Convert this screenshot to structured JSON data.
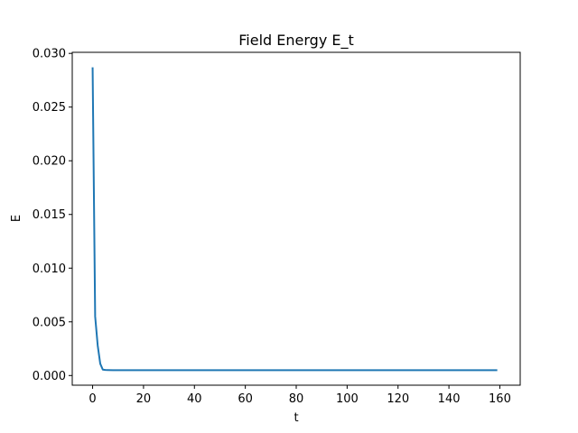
{
  "chart_data": {
    "type": "line",
    "title": "Field Energy E_t",
    "xlabel": "t",
    "ylabel": "E",
    "xlim": [
      -8,
      168
    ],
    "ylim": [
      -0.0009,
      0.0301
    ],
    "xticks": [
      0,
      20,
      40,
      60,
      80,
      100,
      120,
      140,
      160
    ],
    "xtick_labels": [
      "0",
      "20",
      "40",
      "60",
      "80",
      "100",
      "120",
      "140",
      "160"
    ],
    "yticks": [
      0.0,
      0.005,
      0.01,
      0.015,
      0.02,
      0.025,
      0.03
    ],
    "ytick_labels": [
      "0.000",
      "0.005",
      "0.010",
      "0.015",
      "0.020",
      "0.025",
      "0.030"
    ],
    "grid": false,
    "legend": "none",
    "series": [
      {
        "color": "#1f77b4",
        "x": [
          0,
          1,
          2,
          3,
          4,
          5,
          6,
          8,
          10,
          20,
          40,
          60,
          80,
          100,
          120,
          140,
          159
        ],
        "y": [
          0.0287,
          0.0055,
          0.0028,
          0.0011,
          0.00055,
          0.00052,
          0.00051,
          0.0005,
          0.0005,
          0.0005,
          0.0005,
          0.0005,
          0.0005,
          0.0005,
          0.0005,
          0.0005,
          0.0005
        ]
      }
    ]
  }
}
